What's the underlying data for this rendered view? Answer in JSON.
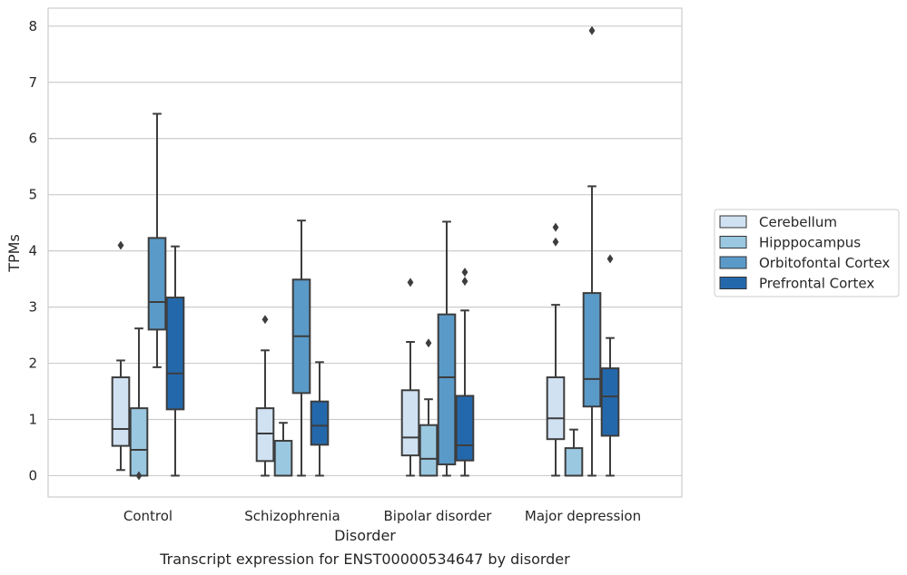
{
  "chart_data": {
    "type": "box",
    "title": "",
    "caption": "Transcript expression for ENST00000534647 by disorder",
    "xlabel": "Disorder",
    "ylabel": "TPMs",
    "ylim": [
      -0.38,
      8.32
    ],
    "yticks": [
      0,
      1,
      2,
      3,
      4,
      5,
      6,
      7,
      8
    ],
    "grid": "horizontal",
    "legend_position": "right",
    "categories": [
      "Control",
      "Schizophrenia",
      "Bipolar disorder",
      "Major depression"
    ],
    "series": [
      {
        "name": "Cerebellum",
        "color": "#d0e1f2",
        "boxes": [
          {
            "whisker_low": 0.1,
            "q1": 0.53,
            "median": 0.83,
            "q3": 1.75,
            "whisker_high": 2.05,
            "outliers": [
              4.1
            ]
          },
          {
            "whisker_low": 0.0,
            "q1": 0.26,
            "median": 0.75,
            "q3": 1.2,
            "whisker_high": 2.23,
            "outliers": [
              2.78
            ]
          },
          {
            "whisker_low": 0.0,
            "q1": 0.36,
            "median": 0.68,
            "q3": 1.52,
            "whisker_high": 2.38,
            "outliers": [
              3.44
            ]
          },
          {
            "whisker_low": 0.0,
            "q1": 0.65,
            "median": 1.02,
            "q3": 1.75,
            "whisker_high": 3.04,
            "outliers": [
              4.16,
              4.42
            ]
          }
        ]
      },
      {
        "name": "Hipppocampus",
        "color": "#9ac8e0",
        "boxes": [
          {
            "whisker_low": 0.0,
            "q1": 0.0,
            "median": 0.46,
            "q3": 1.2,
            "whisker_high": 2.62,
            "outliers": [
              0.0
            ]
          },
          {
            "whisker_low": 0.0,
            "q1": 0.0,
            "median": 0.0,
            "q3": 0.62,
            "whisker_high": 0.94,
            "outliers": []
          },
          {
            "whisker_low": 0.0,
            "q1": 0.0,
            "median": 0.3,
            "q3": 0.9,
            "whisker_high": 1.36,
            "outliers": [
              2.36
            ]
          },
          {
            "whisker_low": 0.0,
            "q1": 0.0,
            "median": 0.0,
            "q3": 0.49,
            "whisker_high": 0.82,
            "outliers": []
          }
        ]
      },
      {
        "name": "Orbitofontal Cortex",
        "color": "#5a9ac8",
        "boxes": [
          {
            "whisker_low": 1.93,
            "q1": 2.6,
            "median": 3.09,
            "q3": 4.23,
            "whisker_high": 6.44,
            "outliers": []
          },
          {
            "whisker_low": 0.0,
            "q1": 1.47,
            "median": 2.48,
            "q3": 3.49,
            "whisker_high": 4.54,
            "outliers": []
          },
          {
            "whisker_low": 0.0,
            "q1": 0.2,
            "median": 1.75,
            "q3": 2.87,
            "whisker_high": 4.52,
            "outliers": []
          },
          {
            "whisker_low": 0.0,
            "q1": 1.23,
            "median": 1.72,
            "q3": 3.25,
            "whisker_high": 5.15,
            "outliers": [
              7.92
            ]
          }
        ]
      },
      {
        "name": "Prefrontal Cortex",
        "color": "#2468ac",
        "boxes": [
          {
            "whisker_low": 0.0,
            "q1": 1.18,
            "median": 1.82,
            "q3": 3.17,
            "whisker_high": 4.08,
            "outliers": []
          },
          {
            "whisker_low": 0.0,
            "q1": 0.55,
            "median": 0.89,
            "q3": 1.32,
            "whisker_high": 2.02,
            "outliers": []
          },
          {
            "whisker_low": 0.0,
            "q1": 0.27,
            "median": 0.54,
            "q3": 1.42,
            "whisker_high": 2.94,
            "outliers": [
              3.46,
              3.62
            ]
          },
          {
            "whisker_low": 0.0,
            "q1": 0.71,
            "median": 1.41,
            "q3": 1.91,
            "whisker_high": 2.45,
            "outliers": [
              3.86
            ]
          }
        ]
      }
    ]
  }
}
